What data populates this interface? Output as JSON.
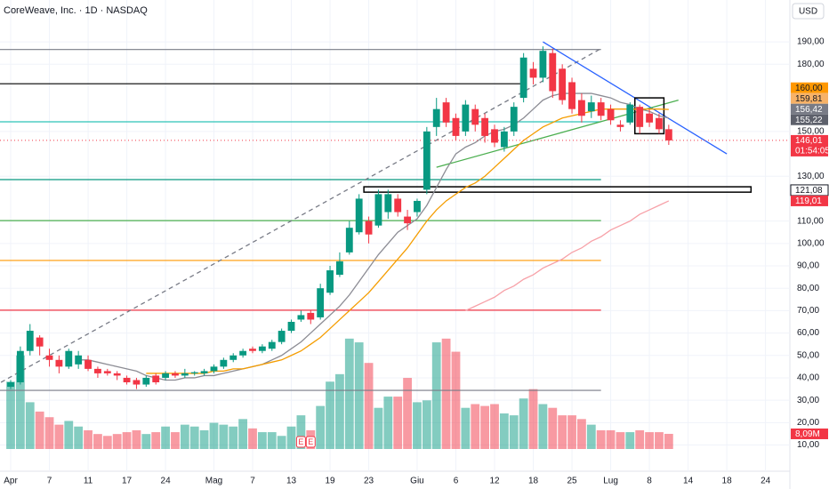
{
  "chart_data": {
    "type": "candlestick",
    "title": "CoreWeave, Inc. · 1D · NASDAQ",
    "currency": "USD",
    "categories": [
      "Apr",
      null,
      null,
      null,
      "7",
      null,
      null,
      null,
      "11",
      null,
      null,
      null,
      "17",
      null,
      null,
      null,
      "24",
      null,
      null,
      null,
      null,
      "Mag",
      null,
      null,
      null,
      "7",
      null,
      null,
      null,
      "13",
      null,
      null,
      null,
      "19",
      null,
      null,
      null,
      "23",
      null,
      null,
      null,
      null,
      "Giu",
      null,
      null,
      null,
      "6",
      null,
      null,
      null,
      "12",
      null,
      null,
      null,
      "18",
      null,
      null,
      null,
      "25",
      null,
      null,
      null,
      "Lug",
      null,
      null,
      null,
      "8",
      null,
      null,
      null,
      "14",
      null,
      null,
      null,
      "18",
      null,
      null,
      null,
      "24",
      null,
      null
    ],
    "open": [
      36,
      38,
      52,
      58,
      50,
      48,
      45,
      46,
      48,
      44,
      43,
      42,
      40,
      39,
      37,
      41,
      40,
      42,
      41,
      42,
      42,
      43,
      45,
      48,
      50,
      53,
      52,
      53,
      56,
      61,
      66,
      69,
      67,
      78,
      86,
      96,
      105,
      110,
      108,
      114,
      120,
      112,
      114,
      124,
      152,
      163,
      156,
      150,
      160,
      156,
      151,
      143,
      150,
      165,
      178,
      174,
      185,
      178,
      172,
      164,
      159,
      163,
      160,
      153,
      154,
      161,
      158,
      156,
      151,
      null,
      null,
      null,
      null,
      null,
      null,
      null,
      null,
      null,
      null,
      null,
      null
    ],
    "high": [
      39,
      54,
      64,
      59,
      53,
      50,
      53,
      52,
      50,
      45,
      44,
      43,
      41,
      40,
      41,
      42,
      43,
      43,
      44,
      43,
      44,
      46,
      49,
      51,
      53,
      54,
      55,
      57,
      62,
      66,
      70,
      70,
      82,
      90,
      96,
      110,
      122,
      112,
      124,
      124,
      122,
      115,
      120,
      152,
      165,
      165,
      158,
      164,
      162,
      158,
      153,
      152,
      163,
      185,
      181,
      188,
      187,
      180,
      174,
      167,
      166,
      165,
      162,
      155,
      163,
      162,
      160,
      158,
      153,
      null,
      null,
      null,
      null,
      null,
      null,
      null,
      null,
      null,
      null,
      null,
      null
    ],
    "low": [
      35,
      37,
      50,
      50,
      45,
      42,
      44,
      44,
      43,
      40,
      41,
      39,
      37,
      35,
      36,
      37,
      39,
      40,
      40,
      41,
      41,
      42,
      44,
      47,
      49,
      51,
      51,
      52,
      55,
      60,
      65,
      64,
      66,
      77,
      85,
      95,
      104,
      100,
      107,
      111,
      112,
      106,
      112,
      122,
      148,
      152,
      146,
      148,
      150,
      145,
      143,
      141,
      148,
      163,
      171,
      172,
      165,
      162,
      158,
      154,
      156,
      155,
      153,
      150,
      153,
      149,
      152,
      149,
      144,
      null,
      null,
      null,
      null,
      null,
      null,
      null,
      null,
      null,
      null,
      null,
      null
    ],
    "close": [
      38,
      52,
      61,
      54,
      48,
      45,
      52,
      50,
      44,
      42,
      42,
      41,
      38,
      37,
      40,
      38,
      42,
      41,
      42,
      42.5,
      43,
      45,
      48,
      50,
      52,
      52,
      54,
      56,
      61,
      65,
      68,
      66,
      80,
      88,
      92,
      107,
      120,
      104,
      122,
      122,
      114,
      109,
      119,
      150,
      160,
      154,
      148,
      162,
      153,
      148,
      145,
      150,
      161,
      183,
      174,
      186,
      168,
      164,
      160,
      157,
      163,
      157,
      155,
      152,
      162,
      152,
      154,
      151,
      146.01,
      null,
      null,
      null,
      null,
      null,
      null,
      null,
      null,
      null,
      null,
      null,
      null
    ],
    "volume": [
      36,
      50,
      25,
      20,
      17,
      13,
      15,
      12,
      10,
      8,
      7,
      8,
      9,
      10,
      8,
      9,
      12,
      9,
      13,
      12,
      10,
      14,
      13,
      12,
      16,
      11,
      9,
      9,
      7,
      12,
      18,
      10,
      23,
      36,
      40,
      59,
      57,
      46,
      22,
      28,
      28,
      38,
      25,
      26,
      57,
      59,
      52,
      22,
      24,
      23,
      24,
      19,
      18,
      27,
      32,
      24,
      22,
      18,
      18,
      16,
      13,
      10,
      10,
      9,
      9,
      10,
      9,
      9,
      8.09,
      null,
      null,
      null,
      null,
      null,
      null,
      null,
      null,
      null,
      null,
      null,
      null
    ],
    "volume_ylim": [
      0,
      240
    ],
    "volume_label": {
      "value": 8.09,
      "label": "8,09M"
    },
    "up_color": "#089981",
    "down_color": "#f23645",
    "ma_lines": [
      {
        "color": "#8c8c94",
        "values": [
          null,
          null,
          null,
          null,
          null,
          null,
          null,
          48,
          48,
          47,
          46,
          45,
          44,
          43,
          41,
          40,
          39,
          39,
          40,
          40,
          41,
          41,
          42,
          43,
          44,
          45,
          46,
          48,
          50,
          53,
          56,
          60,
          64,
          68,
          72,
          77,
          83,
          89,
          95,
          100,
          105,
          108,
          111,
          117,
          125,
          133,
          140,
          143,
          145,
          148,
          150,
          151,
          153,
          156,
          160,
          164,
          166,
          167,
          167,
          167,
          167,
          166,
          165,
          163,
          162,
          160,
          159,
          157,
          156,
          null,
          null,
          null,
          null,
          null,
          null,
          null,
          null,
          null,
          null,
          null,
          null
        ]
      },
      {
        "color": "#f59d00",
        "values": [
          null,
          null,
          null,
          null,
          null,
          null,
          null,
          null,
          null,
          null,
          null,
          null,
          null,
          null,
          42,
          42,
          42,
          42,
          42,
          42,
          42,
          43,
          43,
          44,
          44,
          45,
          46,
          47,
          48,
          50,
          52,
          55,
          58,
          62,
          66,
          70,
          74,
          78,
          83,
          88,
          93,
          98,
          104,
          110,
          115,
          119,
          122,
          125,
          127,
          130,
          134,
          138,
          142,
          146,
          149,
          152,
          154,
          156,
          157,
          158,
          159,
          160,
          160,
          160,
          160,
          160,
          160,
          160,
          159.81,
          null,
          null,
          null,
          null,
          null,
          null,
          null,
          null,
          null,
          null,
          null,
          null
        ]
      },
      {
        "color": "#f7a1a8",
        "values": [
          null,
          null,
          null,
          null,
          null,
          null,
          null,
          null,
          null,
          null,
          null,
          null,
          null,
          null,
          null,
          null,
          null,
          null,
          null,
          null,
          null,
          null,
          null,
          null,
          null,
          null,
          null,
          null,
          null,
          null,
          null,
          null,
          null,
          null,
          null,
          null,
          null,
          null,
          null,
          null,
          null,
          null,
          null,
          null,
          null,
          null,
          null,
          70,
          72,
          74,
          76,
          79,
          81,
          84,
          86,
          89,
          91,
          93,
          96,
          98,
          101,
          103,
          106,
          108,
          110,
          113,
          115,
          117,
          119,
          null,
          null,
          null,
          null,
          null,
          null,
          null,
          null,
          null,
          null,
          null,
          null
        ]
      }
    ],
    "hlines": [
      {
        "value": 186.6,
        "color": "#787b86",
        "to": 61
      },
      {
        "value": 171.3,
        "color": "#000000",
        "to": 53
      },
      {
        "value": 154.3,
        "color": "#2ec4b6",
        "to": 61
      },
      {
        "value": 128.5,
        "color": "#089981",
        "to": 61
      },
      {
        "value": 110.2,
        "color": "#4caf50",
        "to": 61
      },
      {
        "value": 92.4,
        "color": "#ff9800",
        "to": 61
      },
      {
        "value": 70.2,
        "color": "#f23645",
        "to": 61
      },
      {
        "value": 34.4,
        "color": "#787b86",
        "to": 61
      }
    ],
    "trendlines": [
      {
        "color": "#787b86",
        "dashed": true,
        "x": [
          -1,
          61
        ],
        "y": [
          38,
          187
        ]
      },
      {
        "color": "#2962ff",
        "dashed": false,
        "x": [
          55,
          74
        ],
        "y": [
          190,
          140
        ]
      },
      {
        "color": "#4caf50",
        "dashed": false,
        "x": [
          44,
          69
        ],
        "y": [
          134,
          164
        ]
      }
    ],
    "boxes": [
      {
        "x": [
          37,
          76
        ],
        "y": [
          125.3,
          122.9
        ]
      },
      {
        "x": [
          65,
          67
        ],
        "y": [
          165,
          149
        ]
      }
    ],
    "events": [
      {
        "label": "E",
        "index": 30
      },
      {
        "label": "E",
        "index": 31
      }
    ],
    "price_labels": [
      {
        "value": 160,
        "label": "160,00",
        "bg": "#ff9800",
        "fg": "#131722"
      },
      {
        "value": 159.81,
        "label": "159,81",
        "bg": "#f7b267",
        "fg": "#131722"
      },
      {
        "value": 156.42,
        "label": "156,42",
        "bg": "#787b86",
        "fg": "#ffffff"
      },
      {
        "value": 155.22,
        "label": "155,22",
        "bg": "#5d606b",
        "fg": "#ffffff"
      },
      {
        "value": 146.01,
        "label": "146,01",
        "bg": "#f23645",
        "fg": "#ffffff",
        "dotted": true,
        "countdown": "01:54:05"
      },
      {
        "value": 121.08,
        "label": "121,08",
        "bg": "#ffffff",
        "fg": "#131722"
      },
      {
        "value": 119.01,
        "label": "119,01",
        "bg": "#f23645",
        "fg": "#ffffff"
      }
    ],
    "ylim": [
      -1.7,
      208.7
    ],
    "yticks": [
      {
        "value": 190,
        "label": "190,00"
      },
      {
        "value": 180,
        "label": "180,00"
      },
      {
        "value": 150,
        "label": "150,00"
      },
      {
        "value": 130,
        "label": "130,00"
      },
      {
        "value": 110,
        "label": "110,00"
      },
      {
        "value": 100,
        "label": "100,00"
      },
      {
        "value": 90,
        "label": "90,00"
      },
      {
        "value": 80,
        "label": "80,00"
      },
      {
        "value": 70,
        "label": "70,00"
      },
      {
        "value": 60,
        "label": "60,00"
      },
      {
        "value": 50,
        "label": "50,00"
      },
      {
        "value": 40,
        "label": "40,00"
      },
      {
        "value": 30,
        "label": "30,00"
      },
      {
        "value": 20,
        "label": "20,00"
      },
      {
        "value": 10,
        "label": "10,00"
      }
    ],
    "grid": true
  }
}
